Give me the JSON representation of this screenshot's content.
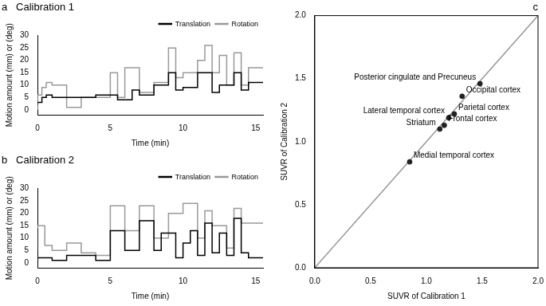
{
  "chart_data": [
    {
      "type": "line",
      "panel": "a",
      "title": "Calibration 1",
      "x_label": "Time (min)",
      "y_label": "Motion amount (mm) or (deg)",
      "xlim": [
        0,
        15.5
      ],
      "xticks": [
        0,
        5,
        10,
        15
      ],
      "ylim": [
        -2,
        30
      ],
      "yticks": [
        0,
        5,
        10,
        15,
        20,
        25,
        30
      ],
      "grid": false,
      "legend": "top-right",
      "series": [
        {
          "name": "Translation",
          "color": "#000000",
          "line_style": "stepped",
          "x": [
            0,
            0.3,
            0.6,
            1,
            1.5,
            2,
            3,
            4,
            5,
            5.5,
            6,
            6.5,
            7,
            8,
            9,
            9.5,
            10,
            11,
            12,
            12.5,
            13.5,
            14,
            14.5,
            15,
            15.5
          ],
          "values": [
            2,
            3,
            5,
            6,
            5,
            5,
            5,
            5,
            6,
            6,
            4,
            4,
            8,
            6,
            10,
            15,
            8,
            9,
            15,
            7,
            10,
            15,
            8,
            11,
            11
          ]
        },
        {
          "name": "Rotation",
          "color": "#999999",
          "line_style": "stepped",
          "x": [
            0,
            0.3,
            0.6,
            1,
            2,
            3,
            3.3,
            4,
            5,
            5.5,
            6,
            7,
            8,
            9,
            9.5,
            10,
            11,
            11.5,
            12,
            12.5,
            13,
            13.5,
            14,
            14.5,
            15,
            15.5
          ],
          "values": [
            0,
            6,
            9,
            11,
            10,
            1,
            5,
            5,
            5,
            15,
            5,
            17,
            7,
            11,
            25,
            13,
            15,
            20,
            26,
            15,
            22,
            10,
            23,
            10,
            17,
            17
          ]
        }
      ]
    },
    {
      "type": "line",
      "panel": "b",
      "title": "Calibration 2",
      "x_label": "Time (min)",
      "y_label": "Motion amount (mm) or (deg)",
      "xlim": [
        0,
        15.5
      ],
      "xticks": [
        0,
        5,
        10,
        15
      ],
      "ylim": [
        -2,
        30
      ],
      "yticks": [
        0,
        5,
        10,
        15,
        20,
        25,
        30
      ],
      "grid": false,
      "legend": "top-right",
      "series": [
        {
          "name": "Translation",
          "color": "#000000",
          "line_style": "stepped",
          "x": [
            0,
            1,
            2,
            4,
            5,
            6,
            7,
            8,
            8.5,
            9.5,
            10,
            10.5,
            11,
            11.5,
            12,
            12.5,
            13,
            13.5,
            14,
            14.5,
            15,
            15.5
          ],
          "values": [
            14,
            2,
            1,
            3,
            1,
            13,
            5,
            17,
            5,
            12,
            2,
            8,
            13,
            3,
            16,
            4,
            12,
            3,
            18,
            4,
            2,
            2
          ]
        },
        {
          "name": "Rotation",
          "color": "#999999",
          "line_style": "stepped",
          "x": [
            0,
            0.5,
            1,
            2,
            3,
            4,
            5,
            6,
            7,
            8,
            9,
            10,
            11,
            11.5,
            12,
            13,
            13.5,
            14,
            15,
            15.5
          ],
          "values": [
            5,
            15,
            7,
            5,
            8,
            4,
            3,
            23,
            13,
            23,
            10,
            20,
            24,
            10,
            21,
            15,
            6,
            22,
            16,
            16
          ]
        }
      ]
    },
    {
      "type": "scatter",
      "panel": "c",
      "x_label": "SUVR of Calibration 1",
      "y_label": "SUVR of Calibration 2",
      "xlim": [
        0,
        2
      ],
      "xticks": [
        {
          "value": 0,
          "label": "0.0"
        },
        {
          "value": 0.5,
          "label": "0.5"
        },
        {
          "value": 1,
          "label": "1.0"
        },
        {
          "value": 1.5,
          "label": "1.5"
        },
        {
          "value": 2,
          "label": "2.0"
        }
      ],
      "ylim": [
        0,
        2
      ],
      "yticks": [
        {
          "value": 0,
          "label": "0.0"
        },
        {
          "value": 0.5,
          "label": "0.5"
        },
        {
          "value": 1,
          "label": "1.0"
        },
        {
          "value": 1.5,
          "label": "1.5"
        },
        {
          "value": 2,
          "label": "2.0"
        }
      ],
      "grid": false,
      "series": [
        {
          "type": "scatter",
          "color": "#222222",
          "marker": "circle",
          "points": [
            {
              "x": 1.48,
              "y": 1.46,
              "label": "Posterior cingulate and Precuneus"
            },
            {
              "x": 1.32,
              "y": 1.36,
              "label": "Occipital cortex"
            },
            {
              "x": 1.25,
              "y": 1.22,
              "label": "Parietal cortex"
            },
            {
              "x": 1.2,
              "y": 1.19,
              "label": "Lateral temporal cortex"
            },
            {
              "x": 1.12,
              "y": 1.1,
              "label": "Striatum"
            },
            {
              "x": 1.16,
              "y": 1.13,
              "label": "Frontal cortex"
            },
            {
              "x": 0.85,
              "y": 0.84,
              "label": "Medial temporal cortex"
            }
          ]
        },
        {
          "type": "line",
          "color": "#999999",
          "x": [
            0,
            2
          ],
          "values": [
            0,
            2
          ]
        }
      ]
    }
  ]
}
